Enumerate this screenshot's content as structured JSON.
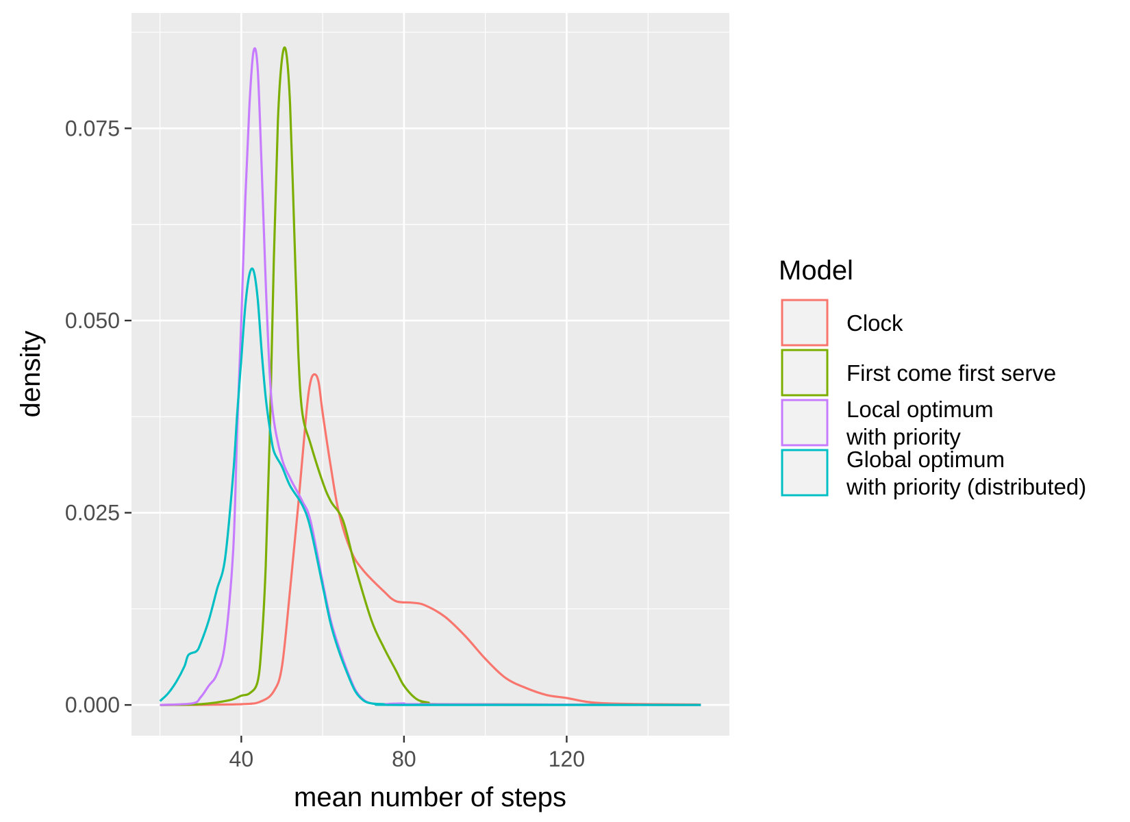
{
  "chart_data": {
    "type": "line",
    "title": "",
    "xlabel": "mean number of steps",
    "ylabel": "density",
    "xlim": [
      13,
      160
    ],
    "ylim": [
      -0.004,
      0.09
    ],
    "x_ticks": [
      40,
      80,
      120
    ],
    "x_tick_labels": [
      "40",
      "80",
      "120"
    ],
    "y_ticks": [
      0.0,
      0.025,
      0.05,
      0.075
    ],
    "y_tick_labels": [
      "0.000",
      "0.025",
      "0.050",
      "0.075"
    ],
    "grid": true,
    "panel_background": "#EBEBEB",
    "legend": {
      "title": "Model",
      "position": "right",
      "entries": [
        {
          "lines": [
            "Clock"
          ],
          "color": "#F8766D"
        },
        {
          "lines": [
            "First come first serve"
          ],
          "color": "#7CAE00"
        },
        {
          "lines": [
            "Local optimum",
            "with priority"
          ],
          "color": "#C77CFF"
        },
        {
          "lines": [
            "Global optimum",
            "with priority (distributed)"
          ],
          "color": "#00BFC4"
        }
      ]
    },
    "series": [
      {
        "name": "Clock",
        "color": "#F8766D",
        "points": [
          [
            20,
            0
          ],
          [
            40,
            0.0001
          ],
          [
            45,
            0.0005
          ],
          [
            48,
            0.0018
          ],
          [
            50,
            0.005
          ],
          [
            52,
            0.015
          ],
          [
            54,
            0.026
          ],
          [
            56,
            0.038
          ],
          [
            57,
            0.042
          ],
          [
            58,
            0.043
          ],
          [
            59,
            0.042
          ],
          [
            60,
            0.038
          ],
          [
            62,
            0.031
          ],
          [
            64,
            0.025
          ],
          [
            67,
            0.02
          ],
          [
            70,
            0.0175
          ],
          [
            75,
            0.0148
          ],
          [
            78,
            0.0135
          ],
          [
            82,
            0.0133
          ],
          [
            85,
            0.013
          ],
          [
            90,
            0.0115
          ],
          [
            95,
            0.009
          ],
          [
            100,
            0.006
          ],
          [
            105,
            0.0035
          ],
          [
            110,
            0.0022
          ],
          [
            115,
            0.0013
          ],
          [
            120,
            0.0009
          ],
          [
            125,
            0.0004
          ],
          [
            130,
            0.0002
          ],
          [
            140,
            0.0001
          ],
          [
            153,
            5e-05
          ]
        ]
      },
      {
        "name": "First come first serve",
        "color": "#7CAE00",
        "points": [
          [
            20,
            0
          ],
          [
            30,
            0.0001
          ],
          [
            37,
            0.0006
          ],
          [
            40,
            0.0012
          ],
          [
            42,
            0.0015
          ],
          [
            44,
            0.003
          ],
          [
            45,
            0.008
          ],
          [
            46,
            0.018
          ],
          [
            47,
            0.035
          ],
          [
            48,
            0.058
          ],
          [
            49,
            0.076
          ],
          [
            50,
            0.084
          ],
          [
            51,
            0.085
          ],
          [
            52,
            0.078
          ],
          [
            53,
            0.062
          ],
          [
            54,
            0.046
          ],
          [
            55,
            0.038
          ],
          [
            57,
            0.034
          ],
          [
            60,
            0.029
          ],
          [
            62,
            0.0265
          ],
          [
            65,
            0.024
          ],
          [
            68,
            0.018
          ],
          [
            72,
            0.011
          ],
          [
            75,
            0.0075
          ],
          [
            78,
            0.0045
          ],
          [
            80,
            0.0025
          ],
          [
            83,
            0.0008
          ],
          [
            86,
            0.0003
          ],
          [
            90,
            0.0001
          ],
          [
            153,
            0
          ]
        ]
      },
      {
        "name": "Local optimum",
        "color": "#C77CFF",
        "points": [
          [
            20,
            0
          ],
          [
            28,
            0.0002
          ],
          [
            30,
            0.001
          ],
          [
            32,
            0.0025
          ],
          [
            34,
            0.004
          ],
          [
            36,
            0.008
          ],
          [
            38,
            0.02
          ],
          [
            39,
            0.036
          ],
          [
            40,
            0.05
          ],
          [
            41,
            0.066
          ],
          [
            42,
            0.078
          ],
          [
            43,
            0.085
          ],
          [
            44,
            0.083
          ],
          [
            45,
            0.07
          ],
          [
            46,
            0.055
          ],
          [
            47,
            0.043
          ],
          [
            48,
            0.037
          ],
          [
            50,
            0.032
          ],
          [
            52,
            0.0295
          ],
          [
            55,
            0.0265
          ],
          [
            57,
            0.024
          ],
          [
            60,
            0.016
          ],
          [
            62,
            0.011
          ],
          [
            64,
            0.0075
          ],
          [
            66,
            0.0045
          ],
          [
            68,
            0.002
          ],
          [
            70,
            0.0007
          ],
          [
            72,
            0.0002
          ],
          [
            75,
            0.0001
          ],
          [
            80,
            0.0002
          ],
          [
            82,
            0.0001
          ],
          [
            153,
            0
          ]
        ]
      },
      {
        "name": "Global optimum",
        "color": "#00BFC4",
        "points": [
          [
            20,
            0.0005
          ],
          [
            22,
            0.0015
          ],
          [
            24,
            0.003
          ],
          [
            26,
            0.005
          ],
          [
            27,
            0.0065
          ],
          [
            29,
            0.007
          ],
          [
            30,
            0.008
          ],
          [
            32,
            0.011
          ],
          [
            34,
            0.015
          ],
          [
            36,
            0.019
          ],
          [
            38,
            0.03
          ],
          [
            39,
            0.038
          ],
          [
            40,
            0.045
          ],
          [
            41,
            0.052
          ],
          [
            42,
            0.056
          ],
          [
            43,
            0.0565
          ],
          [
            44,
            0.053
          ],
          [
            45,
            0.046
          ],
          [
            46,
            0.04
          ],
          [
            47,
            0.036
          ],
          [
            48,
            0.033
          ],
          [
            50,
            0.031
          ],
          [
            52,
            0.0285
          ],
          [
            55,
            0.026
          ],
          [
            57,
            0.023
          ],
          [
            60,
            0.0155
          ],
          [
            62,
            0.0105
          ],
          [
            64,
            0.007
          ],
          [
            66,
            0.0042
          ],
          [
            68,
            0.0018
          ],
          [
            70,
            0.0006
          ],
          [
            72,
            0.0002
          ],
          [
            75,
            0.0001
          ],
          [
            80,
            0
          ],
          [
            153,
            0
          ]
        ]
      }
    ]
  }
}
